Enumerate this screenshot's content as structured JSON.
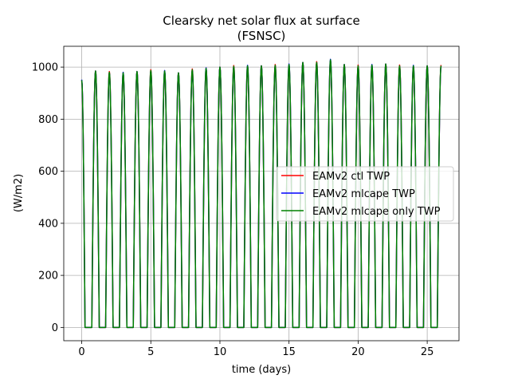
{
  "chart_data": {
    "type": "line",
    "title": "Clearsky net solar flux at surface",
    "subtitle": "(FSNSC)",
    "xlabel": "time (days)",
    "ylabel": "(W/m2)",
    "xlim": [
      -1.3,
      27.3
    ],
    "ylim": [
      -51,
      1080
    ],
    "xticks": [
      0,
      5,
      10,
      15,
      20,
      25
    ],
    "yticks": [
      0,
      200,
      400,
      600,
      800,
      1000
    ],
    "grid": true,
    "legend_position": "center-right",
    "series": [
      {
        "name": "EAMv2 ctl TWP",
        "color": "#ff0000"
      },
      {
        "name": "EAMv2 mlcape TWP",
        "color": "#0000ff"
      },
      {
        "name": "EAMv2 mlcape only TWP",
        "color": "#008000"
      }
    ],
    "daily_peaks": {
      "day": [
        0,
        1,
        2,
        3,
        4,
        5,
        6,
        7,
        8,
        9,
        10,
        11,
        12,
        13,
        14,
        15,
        16,
        17,
        18,
        19,
        20,
        21,
        22,
        23,
        24,
        25,
        26
      ],
      "peak": [
        950,
        985,
        980,
        978,
        983,
        987,
        985,
        978,
        990,
        995,
        1000,
        1003,
        1005,
        1005,
        1007,
        1010,
        1018,
        1018,
        1028,
        1010,
        1005,
        1008,
        1012,
        1005,
        1005,
        1005,
        1005
      ]
    },
    "night_value": 0
  }
}
